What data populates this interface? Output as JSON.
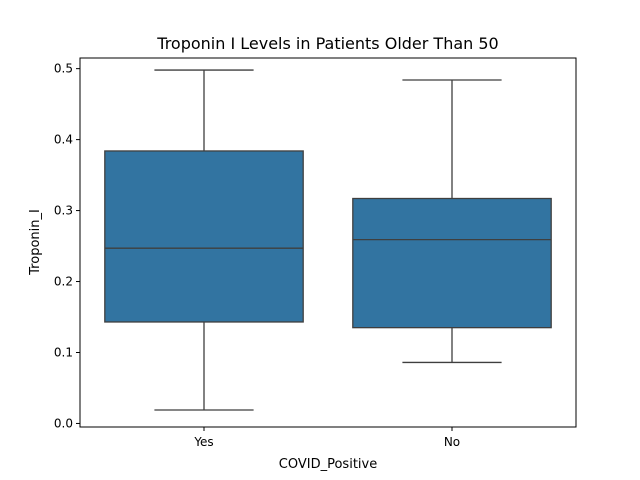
{
  "chart_data": {
    "type": "box",
    "title": "Troponin I Levels in Patients Older Than 50",
    "xlabel": "COVID_Positive",
    "ylabel": "Troponin_I",
    "categories": [
      "Yes",
      "No"
    ],
    "boxes": [
      {
        "category": "Yes",
        "whisker_low": 0.019,
        "q1": 0.143,
        "median": 0.247,
        "q3": 0.384,
        "whisker_high": 0.498
      },
      {
        "category": "No",
        "whisker_low": 0.086,
        "q1": 0.135,
        "median": 0.259,
        "q3": 0.317,
        "whisker_high": 0.484
      }
    ],
    "ylim": [
      -0.005,
      0.515
    ],
    "yticks": [
      0.0,
      0.1,
      0.2,
      0.3,
      0.4,
      0.5
    ],
    "ytick_labels": [
      "0.0",
      "0.1",
      "0.2",
      "0.3",
      "0.4",
      "0.5"
    ],
    "box_color": "#3274a1",
    "grid": false
  }
}
